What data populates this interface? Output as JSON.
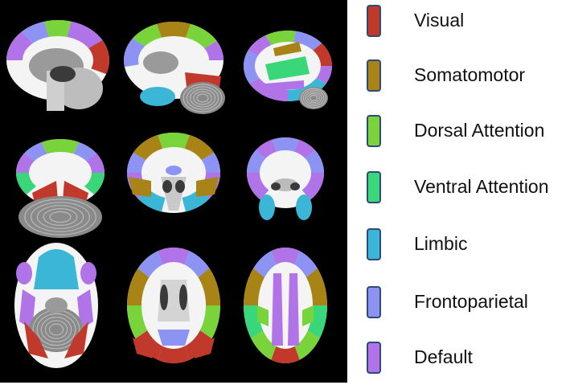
{
  "legend": {
    "items": [
      {
        "label": "Visual",
        "color": "#c0392b"
      },
      {
        "label": "Somatomotor",
        "color": "#a88416"
      },
      {
        "label": "Dorsal Attention",
        "color": "#79d33a"
      },
      {
        "label": "Ventral Attention",
        "color": "#3ad67a"
      },
      {
        "label": "Limbic",
        "color": "#3cb6d6"
      },
      {
        "label": "Frontoparietal",
        "color": "#8c93f2"
      },
      {
        "label": "Default",
        "color": "#b173e8"
      }
    ]
  },
  "panels": [
    {
      "view": "sagittal",
      "variant": "medial-left"
    },
    {
      "view": "sagittal",
      "variant": "medial-mid"
    },
    {
      "view": "sagittal",
      "variant": "lateral"
    },
    {
      "view": "coronal",
      "variant": "posterior"
    },
    {
      "view": "coronal",
      "variant": "mid"
    },
    {
      "view": "coronal",
      "variant": "anterior"
    },
    {
      "view": "axial",
      "variant": "inferior"
    },
    {
      "view": "axial",
      "variant": "mid"
    },
    {
      "view": "axial",
      "variant": "superior"
    }
  ]
}
